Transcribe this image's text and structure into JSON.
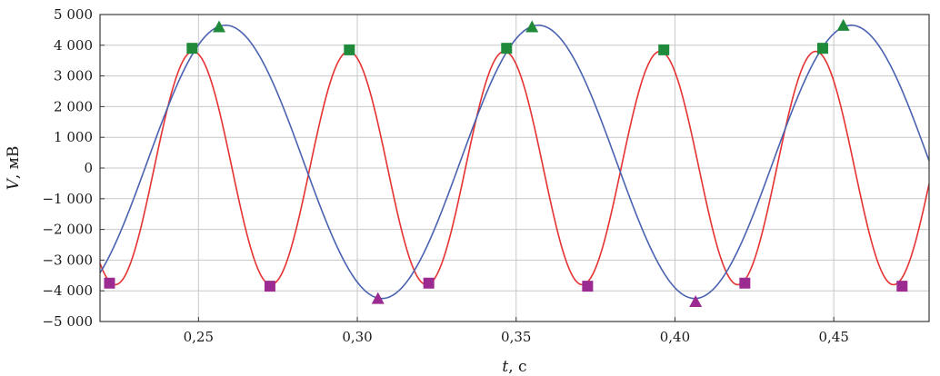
{
  "chart_data": {
    "type": "line",
    "title": "",
    "xlabel_var": "t",
    "xlabel_unit": ", с",
    "ylabel_var": "V",
    "ylabel_unit": ", мВ",
    "xlim": [
      0.219,
      0.48
    ],
    "ylim": [
      -5000,
      5000
    ],
    "grid": true,
    "x_ticks": [
      0.25,
      0.3,
      0.35,
      0.4,
      0.45
    ],
    "x_tick_labels": [
      "0,25",
      "0,30",
      "0,35",
      "0,40",
      "0,45"
    ],
    "y_ticks": [
      5000,
      4000,
      3000,
      2000,
      1000,
      0,
      -1000,
      -2000,
      -3000,
      -4000,
      -5000
    ],
    "y_tick_labels": [
      "5 000",
      "4 000",
      "3 000",
      "2 000",
      "1 000",
      "0",
      "−1 000",
      "−2 000",
      "−3 000",
      "−4 000",
      "−5 000"
    ],
    "series": [
      {
        "color": "#e53232",
        "kind": "sine",
        "amplitude": 3800,
        "period": 0.049,
        "peak_time": 0.2483
      },
      {
        "color": "#4a62b0",
        "kind": "sine",
        "amplitude": 4450,
        "period": 0.0985,
        "peak_time": 0.2585,
        "offset": 200
      }
    ],
    "markers": [
      {
        "shape": "square",
        "color": "#1f8a3a",
        "x": 0.248,
        "y": 3900
      },
      {
        "shape": "square",
        "color": "#1f8a3a",
        "x": 0.2975,
        "y": 3850
      },
      {
        "shape": "square",
        "color": "#1f8a3a",
        "x": 0.347,
        "y": 3900
      },
      {
        "shape": "square",
        "color": "#1f8a3a",
        "x": 0.3965,
        "y": 3850
      },
      {
        "shape": "square",
        "color": "#1f8a3a",
        "x": 0.4465,
        "y": 3900
      },
      {
        "shape": "square",
        "color": "#9b2b90",
        "x": 0.222,
        "y": -3750
      },
      {
        "shape": "square",
        "color": "#9b2b90",
        "x": 0.2725,
        "y": -3850
      },
      {
        "shape": "square",
        "color": "#9b2b90",
        "x": 0.3225,
        "y": -3750
      },
      {
        "shape": "square",
        "color": "#9b2b90",
        "x": 0.3725,
        "y": -3850
      },
      {
        "shape": "square",
        "color": "#9b2b90",
        "x": 0.422,
        "y": -3750
      },
      {
        "shape": "square",
        "color": "#9b2b90",
        "x": 0.4715,
        "y": -3850
      },
      {
        "shape": "triangle",
        "color": "#1f8a3a",
        "x": 0.2565,
        "y": 4600
      },
      {
        "shape": "triangle",
        "color": "#1f8a3a",
        "x": 0.355,
        "y": 4600
      },
      {
        "shape": "triangle",
        "color": "#1f8a3a",
        "x": 0.453,
        "y": 4650
      },
      {
        "shape": "triangle",
        "color": "#9b2b90",
        "x": 0.3065,
        "y": -4250
      },
      {
        "shape": "triangle",
        "color": "#9b2b90",
        "x": 0.4065,
        "y": -4350
      }
    ]
  }
}
